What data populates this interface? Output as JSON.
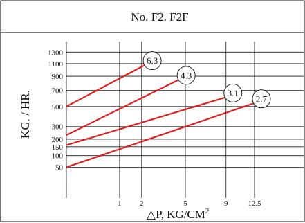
{
  "chart_data": {
    "type": "line",
    "title": "No. F2. F2F",
    "ylabel": "KG. / HR.",
    "xlabel": "△P, KG/CM",
    "xlabel_sup": "2",
    "x_ticks": [
      1,
      2,
      5,
      9,
      12.5
    ],
    "x_tick_labels": [
      "1",
      "2",
      "5",
      "9",
      "12.5"
    ],
    "y_ticks": [
      50,
      100,
      150,
      200,
      300,
      500,
      700,
      900,
      1100,
      1300
    ],
    "y_tick_labels": [
      "50",
      "100",
      "150",
      "200",
      "300",
      "500",
      "700",
      "900",
      "1100",
      "1300"
    ],
    "scale": "square-root",
    "xlim": [
      0,
      20
    ],
    "ylim": [
      0,
      1500
    ],
    "grid": true,
    "line_color": "#e02020",
    "series": [
      {
        "name": "6.3",
        "x": [
          0,
          2.2
        ],
        "y": [
          500,
          1080
        ]
      },
      {
        "name": "4.3",
        "x": [
          0,
          4.5
        ],
        "y": [
          230,
          850
        ]
      },
      {
        "name": "3.1",
        "x": [
          0,
          9
        ],
        "y": [
          160,
          610
        ]
      },
      {
        "name": "2.7",
        "x": [
          0,
          12.5
        ],
        "y": [
          50,
          540
        ]
      }
    ]
  }
}
